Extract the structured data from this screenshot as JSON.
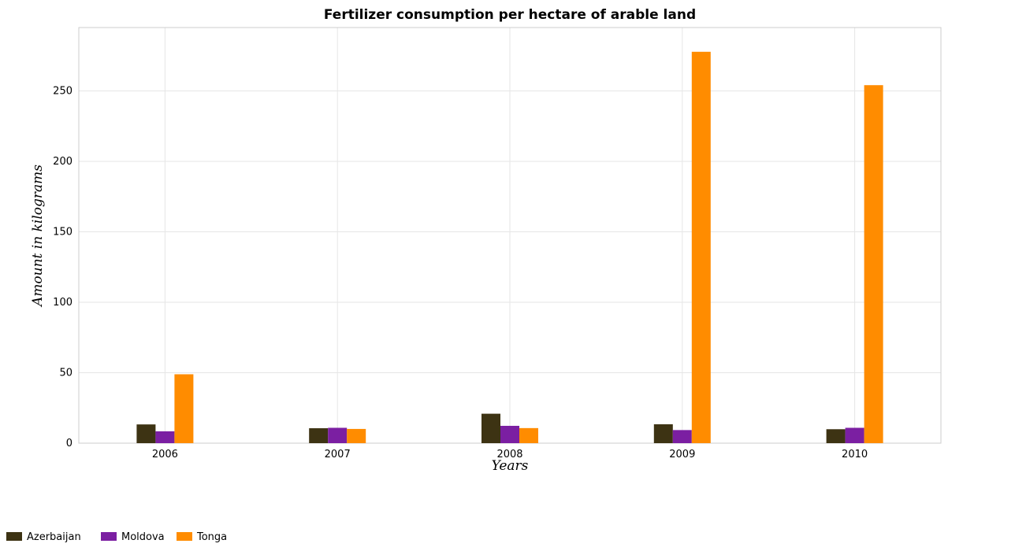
{
  "chart_data": {
    "type": "bar",
    "title": "Fertilizer consumption per hectare of arable land",
    "xlabel": "Years",
    "ylabel": "Amount in kilograms",
    "categories": [
      "2006",
      "2007",
      "2008",
      "2009",
      "2010"
    ],
    "series": [
      {
        "name": "Azerbaijan",
        "color": "#3d3313",
        "values": [
          13.3,
          10.6,
          20.9,
          13.4,
          9.9
        ]
      },
      {
        "name": "Moldova",
        "color": "#7b1fa2",
        "values": [
          8.4,
          10.9,
          12.3,
          9.3,
          10.9
        ]
      },
      {
        "name": "Tonga",
        "color": "#ff8c00",
        "values": [
          48.9,
          10.1,
          10.7,
          277.8,
          254.1
        ]
      }
    ],
    "ylim": [
      0,
      295
    ],
    "yticks": [
      0,
      50,
      100,
      150,
      200,
      250
    ],
    "grid": true,
    "legend_position": "bottom-left"
  }
}
